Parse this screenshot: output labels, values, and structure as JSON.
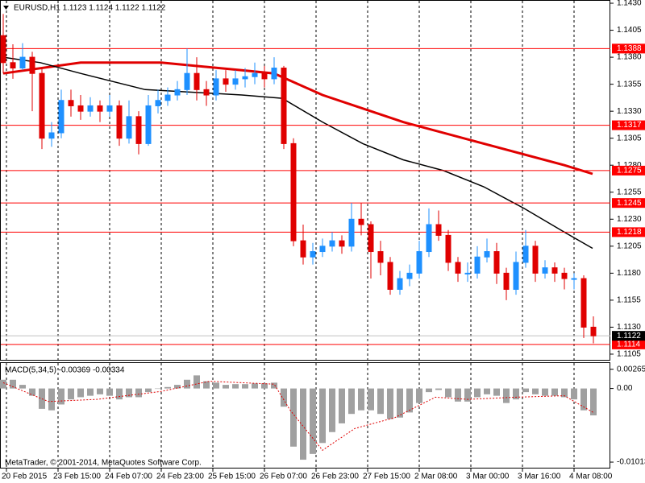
{
  "chart_data": [
    {
      "type": "candlestick",
      "title": "EURUSD,H1  1.1123 1.1124 1.1122 1.1122",
      "x": [
        1,
        4,
        7,
        10,
        13,
        16,
        19,
        22,
        25,
        28,
        31,
        34,
        37,
        40,
        43,
        46,
        49,
        52,
        55,
        58,
        61,
        64,
        67,
        70,
        73,
        76,
        79,
        82,
        85,
        88,
        91,
        94,
        97,
        100,
        103,
        106,
        109,
        112,
        115,
        118,
        121,
        124,
        127,
        130,
        133,
        136,
        139,
        142,
        145,
        148,
        151,
        154,
        157,
        160,
        163,
        166,
        169,
        172,
        175,
        178,
        181,
        184
      ],
      "open": [
        1.14,
        1.1375,
        1.137,
        1.138,
        1.1365,
        1.1305,
        1.131,
        1.134,
        1.1335,
        1.133,
        1.1335,
        1.133,
        1.1335,
        1.1305,
        1.1325,
        1.13,
        1.1335,
        1.134,
        1.1345,
        1.135,
        1.1365,
        1.135,
        1.1345,
        1.136,
        1.1355,
        1.136,
        1.1362,
        1.1365,
        1.136,
        1.137,
        1.13,
        1.121,
        1.1195,
        1.12,
        1.1205,
        1.121,
        1.1205,
        1.123,
        1.1225,
        1.12,
        1.119,
        1.1165,
        1.1175,
        1.118,
        1.12,
        1.1225,
        1.1215,
        1.119,
        1.118,
        1.118,
        1.1195,
        1.12,
        1.118,
        1.1165,
        1.119,
        1.1205,
        1.118,
        1.1185,
        1.118,
        1.1175,
        1.1175,
        1.113
      ],
      "high": [
        1.142,
        1.1392,
        1.1393,
        1.1385,
        1.137,
        1.132,
        1.135,
        1.135,
        1.1345,
        1.1343,
        1.134,
        1.1345,
        1.134,
        1.134,
        1.133,
        1.1345,
        1.135,
        1.1352,
        1.1358,
        1.1388,
        1.138,
        1.1358,
        1.1368,
        1.1368,
        1.1368,
        1.137,
        1.1375,
        1.1372,
        1.138,
        1.1372,
        1.1305,
        1.1225,
        1.1208,
        1.1212,
        1.1218,
        1.1215,
        1.1245,
        1.1245,
        1.1228,
        1.121,
        1.1195,
        1.1182,
        1.1188,
        1.121,
        1.124,
        1.1238,
        1.122,
        1.1195,
        1.119,
        1.1205,
        1.1212,
        1.1208,
        1.1185,
        1.12,
        1.122,
        1.121,
        1.1192,
        1.119,
        1.1185,
        1.118,
        1.1178,
        1.114
      ],
      "low": [
        1.1365,
        1.136,
        1.1368,
        1.133,
        1.1295,
        1.1297,
        1.1305,
        1.1325,
        1.1322,
        1.1325,
        1.132,
        1.1325,
        1.1298,
        1.13,
        1.129,
        1.1298,
        1.1328,
        1.1335,
        1.134,
        1.1345,
        1.134,
        1.1335,
        1.134,
        1.1348,
        1.135,
        1.1352,
        1.1355,
        1.1352,
        1.1355,
        1.1295,
        1.1205,
        1.1188,
        1.1188,
        1.1195,
        1.12,
        1.1198,
        1.12,
        1.1215,
        1.1175,
        1.1178,
        1.116,
        1.116,
        1.1168,
        1.1175,
        1.1195,
        1.121,
        1.1182,
        1.1172,
        1.1172,
        1.1175,
        1.119,
        1.117,
        1.1155,
        1.116,
        1.1185,
        1.1172,
        1.1175,
        1.1172,
        1.1165,
        1.1165,
        1.112,
        1.1115
      ],
      "close": [
        1.1375,
        1.137,
        1.138,
        1.1365,
        1.1305,
        1.131,
        1.134,
        1.1335,
        1.133,
        1.1335,
        1.133,
        1.1335,
        1.1305,
        1.1325,
        1.13,
        1.1335,
        1.134,
        1.1345,
        1.135,
        1.1365,
        1.135,
        1.1345,
        1.136,
        1.1355,
        1.136,
        1.1362,
        1.1365,
        1.136,
        1.137,
        1.13,
        1.121,
        1.1195,
        1.12,
        1.1205,
        1.121,
        1.1205,
        1.123,
        1.1225,
        1.12,
        1.119,
        1.1165,
        1.1175,
        1.118,
        1.12,
        1.1225,
        1.1215,
        1.119,
        1.118,
        1.118,
        1.1195,
        1.12,
        1.118,
        1.1165,
        1.119,
        1.1205,
        1.118,
        1.1185,
        1.118,
        1.1175,
        1.1175,
        1.113,
        1.1122
      ],
      "up_color": "#1e90ff",
      "down_color": "#e00000",
      "xlim": [
        0,
        189.25
      ],
      "xticks": [
        {
          "value": 2,
          "label": "20 Feb 2015"
        },
        {
          "value": 18,
          "label": "23 Feb 15:00"
        },
        {
          "value": 34,
          "label": "24 Feb 07:00"
        },
        {
          "value": 50,
          "label": "24 Feb 23:00"
        },
        {
          "value": 66,
          "label": "25 Feb 15:00"
        },
        {
          "value": 82,
          "label": "26 Feb 07:00"
        },
        {
          "value": 98,
          "label": "26 Feb 23:00"
        },
        {
          "value": 114,
          "label": "27 Feb 15:00"
        },
        {
          "value": 130,
          "label": "2 Mar 08:00"
        },
        {
          "value": 146,
          "label": "3 Mar 00:00"
        },
        {
          "value": 162,
          "label": "3 Mar 16:00"
        },
        {
          "value": 178,
          "label": "4 Mar 08:00"
        }
      ],
      "ylim": [
        1.1099,
        1.1433
      ],
      "yticks": [
        {
          "value": 1.143,
          "label": "1.1430"
        },
        1.1405,
        {
          "value": 1.138,
          "label": "1.1380"
        },
        1.1355,
        {
          "value": 1.133,
          "label": "1.1330"
        },
        1.1305,
        {
          "value": 1.128,
          "label": "1.1280"
        },
        1.1255,
        {
          "value": 1.123,
          "label": "1.1230"
        },
        1.1205,
        {
          "value": 1.118,
          "label": "1.1180"
        },
        1.1155,
        {
          "value": 1.113,
          "label": "1.1130"
        },
        1.1105
      ],
      "lines": [
        {
          "color": "#e00000",
          "x": [
            1,
            25,
            50,
            75,
            85,
            100,
            125,
            150,
            175,
            183.75
          ],
          "values": [
            1.1365,
            1.1375,
            1.1375,
            1.1368,
            1.1365,
            1.1345,
            1.132,
            1.13,
            1.128,
            1.1272
          ]
        },
        {
          "color": "#000000",
          "x": [
            1,
            12.5,
            25,
            45,
            75,
            87.5,
            100,
            112.5,
            125,
            137.5,
            150,
            162.5,
            175,
            183.75
          ],
          "values": [
            1.138,
            1.1375,
            1.1365,
            1.135,
            1.1345,
            1.1342,
            1.132,
            1.13,
            1.1285,
            1.1275,
            1.126,
            1.124,
            1.1218,
            1.1203
          ]
        }
      ],
      "levels": [
        1.1388,
        1.1317,
        1.1275,
        1.1245,
        1.1218,
        1.1114
      ],
      "level_color": "#ff0000",
      "last_price": 1.1122,
      "grid": true
    },
    {
      "type": "bar",
      "title": "MACD(5,34,5) -0.00369 -0.00334",
      "values": [
        0.0012,
        0.0012,
        0.0005,
        -0.001,
        -0.0028,
        -0.003,
        -0.0022,
        -0.0015,
        -0.0012,
        -0.001,
        -0.0008,
        -0.001,
        -0.0015,
        -0.0012,
        -0.0012,
        -0.0005,
        0.0,
        0.0002,
        0.0005,
        0.0012,
        0.0018,
        0.001,
        0.0008,
        0.0005,
        0.0006,
        0.0006,
        0.0007,
        0.0007,
        0.0008,
        -0.0025,
        -0.008,
        -0.0098,
        -0.009,
        -0.0075,
        -0.006,
        -0.0048,
        -0.0035,
        -0.003,
        -0.003,
        -0.0035,
        -0.0042,
        -0.004,
        -0.0033,
        -0.002,
        -0.0005,
        -0.0002,
        -0.0012,
        -0.0018,
        -0.0018,
        -0.0012,
        -0.0008,
        -0.001,
        -0.002,
        -0.0015,
        -0.0005,
        -0.0008,
        -0.001,
        -0.001,
        -0.0012,
        -0.0015,
        -0.003,
        -0.0037
      ],
      "color": "#a0a0a0",
      "signal": {
        "color": "#e00000",
        "x": [
          1,
          15,
          30,
          50,
          65,
          85,
          90,
          100,
          110,
          122.5,
          135,
          145,
          160,
          175,
          184
        ],
        "values": [
          0.0008,
          -0.0018,
          -0.0015,
          -0.0004,
          0.001,
          0.0006,
          -0.003,
          -0.0085,
          -0.0055,
          -0.004,
          -0.0012,
          -0.0015,
          -0.0012,
          -0.001,
          -0.0033
        ]
      },
      "xlim": [
        0,
        189.25
      ],
      "ylim": [
        -0.0109,
        0.0035
      ],
      "yticks": [
        0.00265,
        {
          "value": 0,
          "label": "0.00"
        },
        -0.01013
      ],
      "footer": "MetaTrader, © 2001-2014, MetaQuotes Software Corp."
    }
  ]
}
